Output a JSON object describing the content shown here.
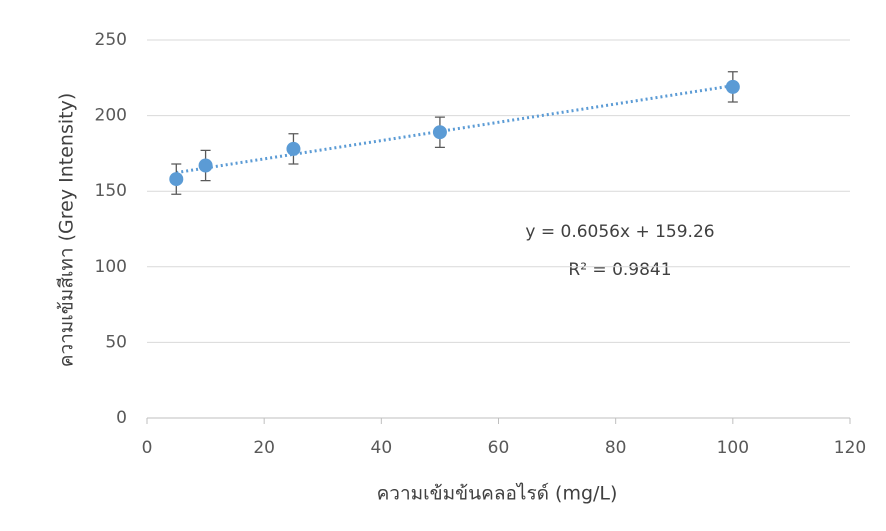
{
  "chart_data": {
    "type": "scatter",
    "x_label": "ความเข้มข้นคลอไรด์ (mg/L)",
    "y_label": "ความเข้มสีเทา (Grey Intensity)",
    "series": [
      {
        "name": "Grey intensity",
        "color": "#5b9bd5",
        "x": [
          5,
          10,
          25,
          50,
          100
        ],
        "values": [
          158,
          167,
          178,
          189,
          219
        ],
        "errors": [
          10,
          10,
          10,
          10,
          10
        ]
      }
    ],
    "trendline": {
      "color": "#5b9bd5",
      "x": [
        5,
        100
      ],
      "values": [
        162.3,
        219.8
      ],
      "equation": "y = 0.6056x + 159.26",
      "r2": "R² = 0.9841"
    },
    "xlim": [
      0,
      120
    ],
    "xticks": [
      0,
      20,
      40,
      60,
      80,
      100,
      120
    ],
    "ylim": [
      0,
      250
    ],
    "yticks": [
      0,
      50,
      100,
      150,
      200,
      250
    ],
    "grid": true
  }
}
